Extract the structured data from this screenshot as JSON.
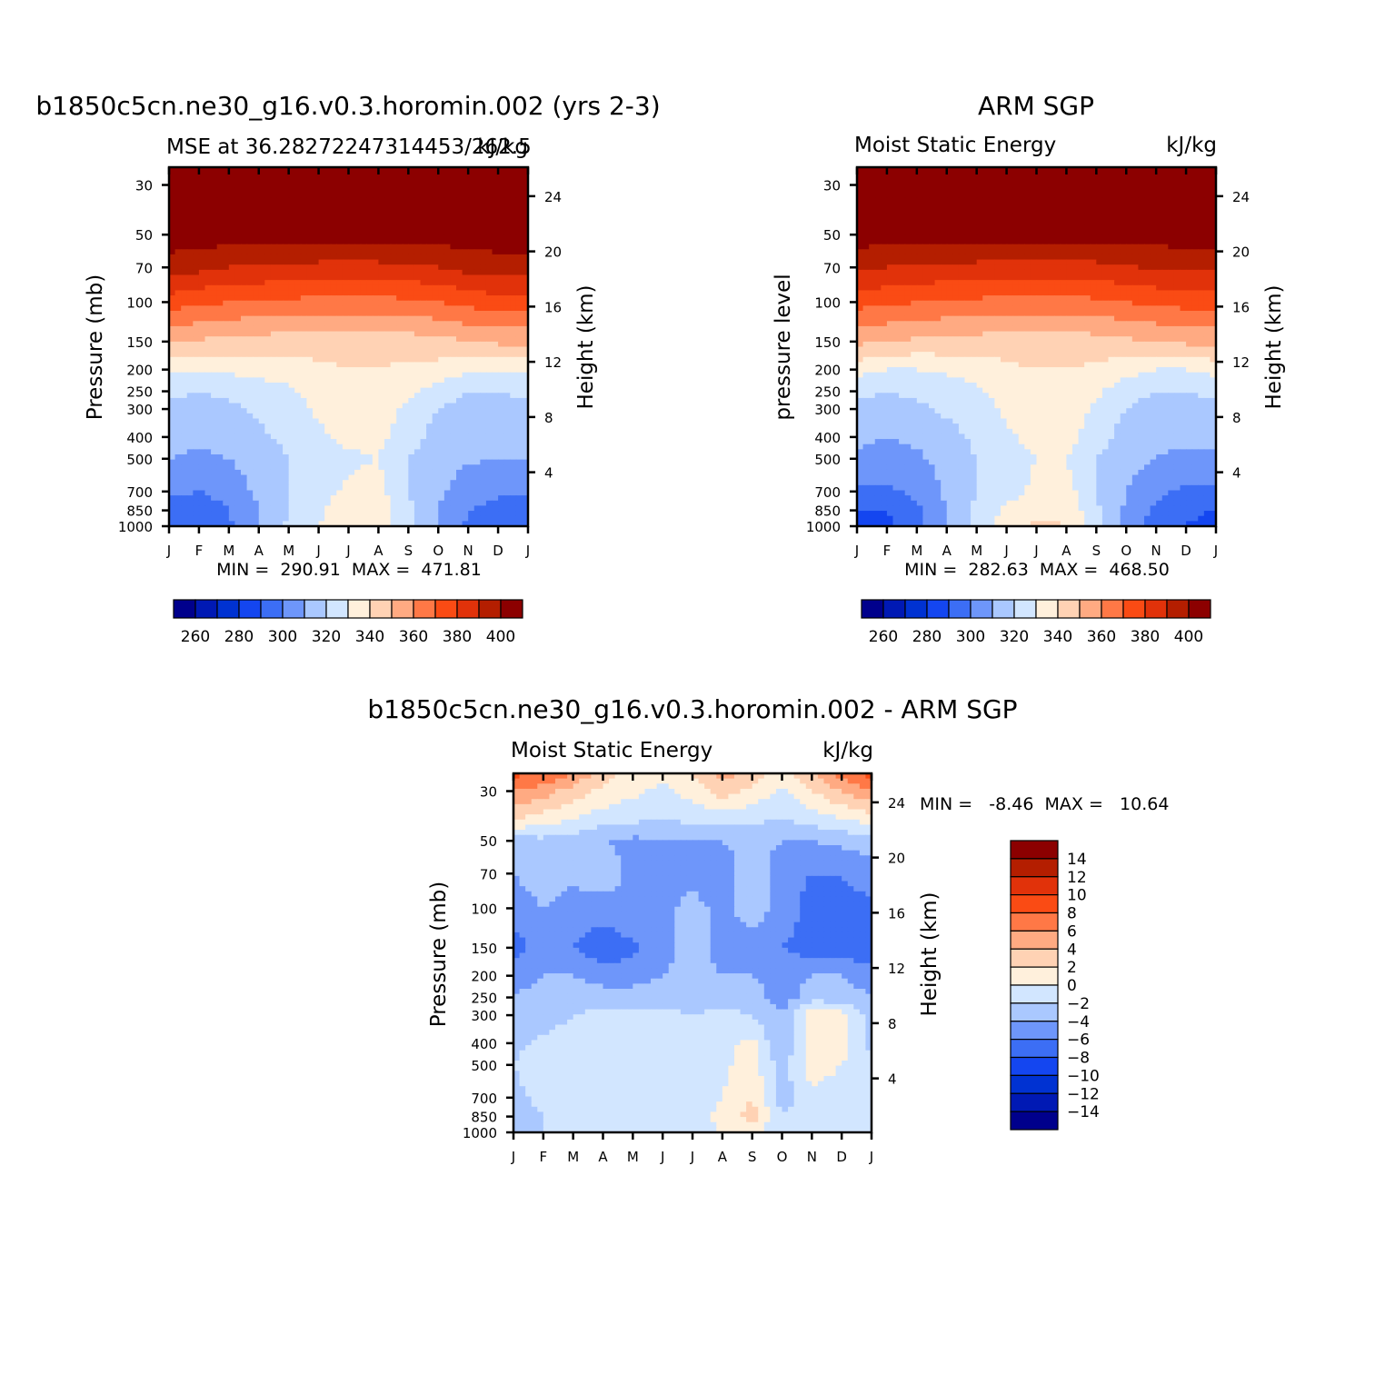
{
  "chart_data": [
    {
      "type": "heatmap",
      "id": "model",
      "title": "b1850c5cn.ne30_g16.v0.3.horomin.002 (yrs 2-3)",
      "subtitle_left": "MSE at 36.28272247314453/262.5",
      "subtitle_right": "kJ/kg",
      "xlabel": "",
      "ylabel": "Pressure (mb)",
      "ylabel_right": "Height (km)",
      "x_ticks": [
        "J",
        "F",
        "M",
        "A",
        "M",
        "J",
        "J",
        "A",
        "S",
        "O",
        "N",
        "D",
        "J"
      ],
      "y_ticks": [
        "30",
        "50",
        "70",
        "100",
        "150",
        "200",
        "250",
        "300",
        "400",
        "500",
        "700",
        "850",
        "1000"
      ],
      "y_ticks_right": [
        "24",
        "20",
        "16",
        "12",
        "8",
        "4"
      ],
      "stats": "MIN =  290.91  MAX =  471.81",
      "levels": [
        260,
        270,
        280,
        290,
        300,
        310,
        320,
        330,
        340,
        350,
        360,
        370,
        380,
        390,
        400
      ],
      "colorbar_labels": [
        "260",
        "280",
        "300",
        "320",
        "340",
        "360",
        "380",
        "400"
      ],
      "grid_pressure": [
        30,
        50,
        70,
        100,
        150,
        200,
        250,
        300,
        400,
        500,
        700,
        850,
        1000
      ],
      "grid": [
        [
          410,
          410,
          410,
          410,
          410,
          410,
          410,
          410,
          410,
          410,
          410,
          410,
          410
        ],
        [
          405,
          405,
          405,
          405,
          405,
          405,
          405,
          405,
          405,
          405,
          405,
          405,
          405
        ],
        [
          396,
          393,
          390,
          389,
          388,
          387,
          387,
          387,
          388,
          390,
          394,
          396,
          396
        ],
        [
          375,
          372,
          370,
          369,
          368,
          367,
          367,
          367,
          368,
          370,
          373,
          375,
          375
        ],
        [
          352,
          349,
          347,
          346,
          345,
          344,
          344,
          344,
          345,
          347,
          350,
          352,
          352
        ],
        [
          332,
          330,
          332,
          334,
          336,
          338,
          340,
          340,
          338,
          336,
          332,
          331,
          332
        ],
        [
          322,
          320,
          322,
          324,
          328,
          334,
          336,
          336,
          332,
          326,
          320,
          320,
          322
        ],
        [
          318,
          316,
          318,
          322,
          326,
          332,
          335,
          335,
          328,
          320,
          316,
          316,
          318
        ],
        [
          314,
          312,
          314,
          318,
          322,
          328,
          333,
          333,
          324,
          316,
          314,
          313,
          314
        ],
        [
          310,
          308,
          310,
          315,
          320,
          324,
          328,
          330,
          320,
          314,
          311,
          310,
          310
        ],
        [
          302,
          300,
          304,
          312,
          320,
          326,
          332,
          334,
          320,
          312,
          305,
          302,
          302
        ],
        [
          294,
          294,
          300,
          310,
          320,
          328,
          336,
          336,
          322,
          310,
          300,
          296,
          294
        ],
        [
          290,
          292,
          298,
          310,
          322,
          330,
          338,
          338,
          322,
          310,
          298,
          294,
          290
        ]
      ]
    },
    {
      "type": "heatmap",
      "id": "obs",
      "title": "ARM SGP",
      "subtitle_left": "Moist Static Energy",
      "subtitle_right": "kJ/kg",
      "ylabel": "pressure level",
      "ylabel_right": "Height (km)",
      "x_ticks": [
        "J",
        "F",
        "M",
        "A",
        "M",
        "J",
        "J",
        "A",
        "S",
        "O",
        "N",
        "D",
        "J"
      ],
      "y_ticks": [
        "30",
        "50",
        "70",
        "100",
        "150",
        "200",
        "250",
        "300",
        "400",
        "500",
        "700",
        "850",
        "1000"
      ],
      "y_ticks_right": [
        "24",
        "20",
        "16",
        "12",
        "8",
        "4"
      ],
      "stats": "MIN =  282.63  MAX =  468.50",
      "levels": [
        260,
        270,
        280,
        290,
        300,
        310,
        320,
        330,
        340,
        350,
        360,
        370,
        380,
        390,
        400
      ],
      "colorbar_labels": [
        "260",
        "280",
        "300",
        "320",
        "340",
        "360",
        "380",
        "400"
      ],
      "grid_pressure": [
        30,
        50,
        70,
        100,
        150,
        200,
        250,
        300,
        400,
        500,
        700,
        850,
        1000
      ],
      "grid": [
        [
          410,
          410,
          410,
          410,
          410,
          410,
          410,
          410,
          410,
          410,
          410,
          410,
          410
        ],
        [
          405,
          405,
          405,
          405,
          405,
          405,
          405,
          405,
          405,
          405,
          405,
          405,
          405
        ],
        [
          392,
          390,
          389,
          388,
          387,
          386,
          386,
          386,
          387,
          389,
          391,
          392,
          392
        ],
        [
          374,
          372,
          370,
          369,
          368,
          367,
          367,
          367,
          368,
          370,
          372,
          374,
          374
        ],
        [
          352,
          350,
          348,
          347,
          346,
          345,
          345,
          345,
          346,
          348,
          350,
          352,
          352
        ],
        [
          334,
          330,
          330,
          332,
          334,
          338,
          340,
          340,
          338,
          334,
          330,
          330,
          334
        ],
        [
          322,
          320,
          322,
          324,
          328,
          334,
          338,
          338,
          332,
          324,
          320,
          320,
          322
        ],
        [
          318,
          316,
          318,
          322,
          326,
          332,
          336,
          336,
          328,
          320,
          316,
          316,
          318
        ],
        [
          312,
          310,
          312,
          316,
          322,
          328,
          334,
          334,
          324,
          316,
          312,
          312,
          312
        ],
        [
          308,
          306,
          308,
          314,
          320,
          326,
          330,
          330,
          320,
          314,
          310,
          308,
          308
        ],
        [
          298,
          298,
          302,
          312,
          320,
          326,
          332,
          334,
          320,
          310,
          302,
          298,
          298
        ],
        [
          290,
          290,
          298,
          310,
          322,
          332,
          338,
          338,
          322,
          308,
          298,
          292,
          290
        ],
        [
          286,
          288,
          296,
          310,
          324,
          334,
          342,
          340,
          324,
          306,
          294,
          290,
          286
        ]
      ]
    },
    {
      "type": "heatmap",
      "id": "diff",
      "title": "b1850c5cn.ne30_g16.v0.3.horomin.002 - ARM SGP",
      "subtitle_left": "Moist Static Energy",
      "subtitle_right": "kJ/kg",
      "ylabel": "Pressure (mb)",
      "ylabel_right": "Height (km)",
      "x_ticks": [
        "J",
        "F",
        "M",
        "A",
        "M",
        "J",
        "J",
        "A",
        "S",
        "O",
        "N",
        "D",
        "J"
      ],
      "y_ticks": [
        "30",
        "50",
        "70",
        "100",
        "150",
        "200",
        "250",
        "300",
        "400",
        "500",
        "700",
        "850",
        "1000"
      ],
      "y_ticks_right": [
        "24",
        "20",
        "16",
        "12",
        "8",
        "4"
      ],
      "stats": "MIN =   -8.46  MAX =   10.64",
      "levels": [
        -14,
        -12,
        -10,
        -8,
        -6,
        -4,
        -2,
        0,
        2,
        4,
        6,
        8,
        10,
        12,
        14
      ],
      "colorbar_labels": [
        "14",
        "12",
        "10",
        "8",
        "6",
        "4",
        "2",
        "0",
        "-2",
        "-4",
        "-6",
        "-8",
        "-10",
        "-12",
        "-14"
      ],
      "grid_pressure": [
        25,
        30,
        40,
        50,
        70,
        100,
        150,
        200,
        250,
        300,
        400,
        500,
        700,
        850,
        1000
      ],
      "grid": [
        [
          8.5,
          8,
          6,
          3,
          1,
          0.5,
          2,
          5,
          3,
          1,
          4,
          7,
          9
        ],
        [
          6,
          5,
          3,
          1.5,
          0.5,
          -0.5,
          1,
          3,
          1.5,
          -0.5,
          2,
          4,
          6
        ],
        [
          2,
          1,
          0,
          -1,
          -1.5,
          -2,
          -1.5,
          -1,
          -1.5,
          -2,
          -1,
          0,
          1
        ],
        [
          -3,
          -2.5,
          -3,
          -4,
          -4.5,
          -4,
          -4,
          -4,
          -3.5,
          -4,
          -4,
          -3.5,
          -3
        ],
        [
          -4,
          -3,
          -3.5,
          -2.5,
          -5,
          -4.5,
          -4.5,
          -5,
          -3,
          -5,
          -6,
          -6,
          -5
        ],
        [
          -5,
          -4,
          -5,
          -5,
          -4,
          -4.5,
          -3.5,
          -4.5,
          -3,
          -4.5,
          -7,
          -6.5,
          -6.5
        ],
        [
          -7,
          -5,
          -6,
          -7.5,
          -6.5,
          -5,
          -3,
          -5,
          -5,
          -6,
          -7,
          -7,
          -8
        ],
        [
          -5,
          -4,
          -4,
          -5,
          -5,
          -4,
          -3,
          -4,
          -4,
          -5,
          -4,
          -4,
          -5
        ],
        [
          -4,
          -3,
          -3,
          -3,
          -3,
          -3,
          -3,
          -2.5,
          -3,
          -5,
          -3,
          -3,
          -4
        ],
        [
          -3,
          -3,
          -2,
          -1.5,
          -1.5,
          -1.5,
          -2,
          -1.5,
          -2,
          -4,
          1.5,
          1,
          -3
        ],
        [
          -2.5,
          -1.5,
          -1,
          -1,
          -1,
          -1,
          -1.5,
          -0.5,
          0.5,
          -4,
          1.5,
          1,
          -2.5
        ],
        [
          -2,
          -1,
          -0.5,
          -0.5,
          -0.5,
          -0.5,
          -0.5,
          -0.5,
          1,
          -3,
          1,
          0,
          -2
        ],
        [
          -2.5,
          -1.5,
          -0.5,
          -0.5,
          -0.5,
          -0.5,
          -0.5,
          0,
          2,
          -3,
          -0.5,
          -1,
          -2
        ],
        [
          -3,
          -2,
          -1,
          -0.5,
          -0.5,
          -0.5,
          -1,
          0.5,
          3,
          -2,
          -0.5,
          -1,
          -2
        ],
        [
          -3,
          -2,
          -1.5,
          -0.5,
          -0.5,
          -0.5,
          -1.5,
          0.5,
          1,
          -2,
          -0.5,
          -1,
          -2
        ]
      ]
    }
  ],
  "colors": {
    "palette": [
      "#00008c",
      "#0019b4",
      "#0032d2",
      "#1446f0",
      "#3c6ef5",
      "#6e96fa",
      "#aac8ff",
      "#d2e6ff",
      "#fff0dc",
      "#ffd2b4",
      "#ffaa82",
      "#ff7846",
      "#fa4b14",
      "#e1320a",
      "#b41e00",
      "#8c0000"
    ]
  }
}
